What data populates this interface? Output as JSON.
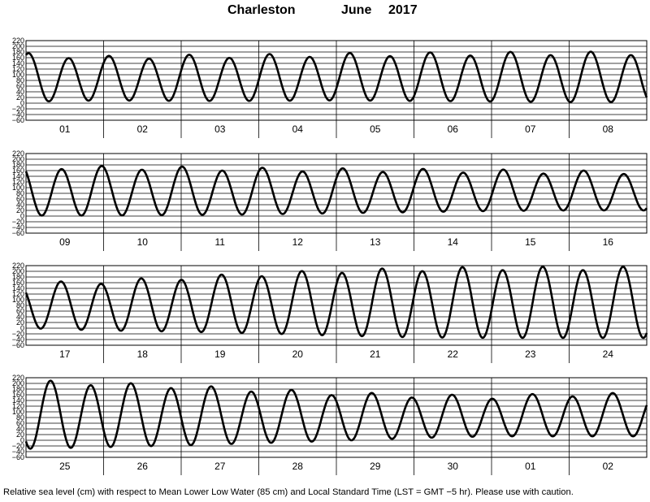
{
  "header": {
    "station": "Charleston",
    "month": "June",
    "year": "2017"
  },
  "footer": {
    "caption": "Relative sea level (cm) with respect to Mean Lower Low Water (85 cm) and Local Standard Time (LST = GMT −5 hr). Please use with caution."
  },
  "chart_data": [
    {
      "type": "line",
      "x": [
        "01",
        "02",
        "03",
        "04",
        "05",
        "06",
        "07",
        "08"
      ],
      "ylim": [
        -60,
        220
      ],
      "yticks": [
        "220",
        "200",
        "180",
        "160",
        "140",
        "120",
        "100",
        "80",
        "60",
        "40",
        "20",
        "0",
        "−20",
        "−40",
        "−60"
      ],
      "tide_range": {
        "high": [
          170,
          160,
          164,
          166,
          170,
          172,
          174,
          175
        ],
        "low": [
          5,
          10,
          8,
          8,
          10,
          8,
          6,
          4
        ]
      },
      "series": [
        {
          "values_description_units": "cm"
        }
      ]
    },
    {
      "type": "line",
      "x": [
        "09",
        "10",
        "11",
        "12",
        "13",
        "14",
        "15",
        "16"
      ],
      "ylim": [
        -60,
        220
      ],
      "yticks": [
        "220",
        "200",
        "180",
        "160",
        "140",
        "120",
        "100",
        "80",
        "60",
        "40",
        "20",
        "0",
        "−20",
        "−40",
        "−60"
      ],
      "tide_range": {
        "high": [
          172,
          170,
          168,
          164,
          162,
          160,
          158,
          154
        ],
        "low": [
          2,
          2,
          4,
          6,
          10,
          14,
          18,
          20
        ]
      }
    },
    {
      "type": "line",
      "x": [
        "17",
        "18",
        "19",
        "20",
        "21",
        "22",
        "23",
        "24"
      ],
      "ylim": [
        -60,
        220
      ],
      "yticks": [
        "220",
        "200",
        "180",
        "160",
        "140",
        "120",
        "100",
        "80",
        "60",
        "40",
        "20",
        "0",
        "−20",
        "−40",
        "−60"
      ],
      "tide_range": {
        "high": [
          155,
          162,
          176,
          188,
          200,
          206,
          210,
          210
        ],
        "low": [
          0,
          -8,
          -12,
          -18,
          -26,
          -32,
          -34,
          -34
        ]
      }
    },
    {
      "type": "line",
      "x": [
        "25",
        "26",
        "27",
        "28",
        "29",
        "30",
        "01",
        "02"
      ],
      "ylim": [
        -60,
        220
      ],
      "yticks": [
        "220",
        "200",
        "180",
        "160",
        "140",
        "120",
        "100",
        "80",
        "60",
        "40",
        "20",
        "0",
        "−20",
        "−40",
        "−60"
      ],
      "tide_range": {
        "high": [
          206,
          198,
          188,
          176,
          164,
          156,
          152,
          160
        ],
        "low": [
          -30,
          -24,
          -18,
          -10,
          -2,
          8,
          14,
          14
        ]
      }
    }
  ]
}
